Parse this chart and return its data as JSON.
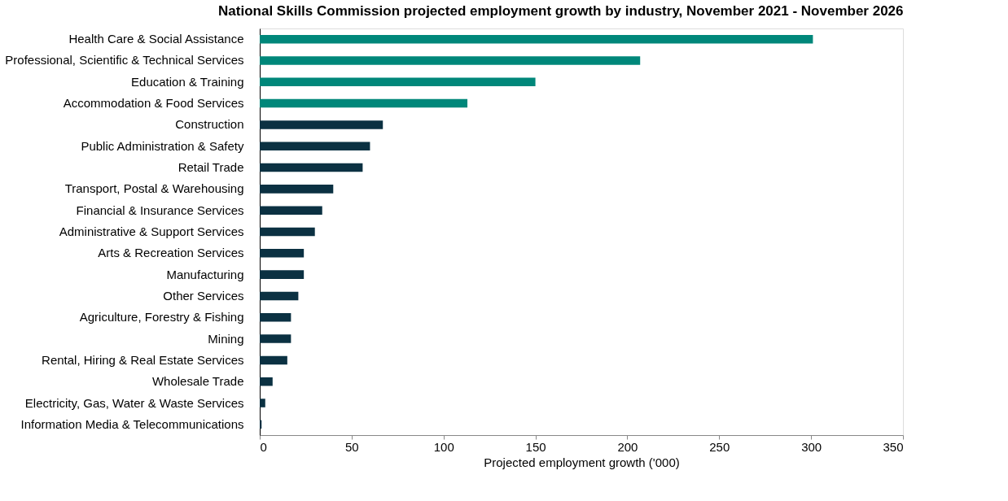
{
  "chart_data": {
    "type": "bar",
    "orientation": "horizontal",
    "title": "National Skills Commission projected employment growth by industry, November 2021 - November 2026",
    "xlabel": "Projected employment growth ('000)",
    "categories": [
      "Health Care & Social Assistance",
      "Professional, Scientific & Technical Services",
      "Education & Training",
      "Accommodation & Food Services",
      "Construction",
      "Public Administration & Safety",
      "Retail Trade",
      "Transport, Postal & Warehousing",
      "Financial & Insurance Services",
      "Administrative & Support Services",
      "Arts & Recreation Services",
      "Manufacturing",
      "Other Services",
      "Agriculture, Forestry & Fishing",
      "Mining",
      "Rental, Hiring & Real Estate Services",
      "Wholesale Trade",
      "Electricity, Gas, Water & Waste Services",
      "Information Media & Telecommunications"
    ],
    "values": [
      301,
      207,
      150,
      113,
      67,
      60,
      56,
      40,
      34,
      30,
      24,
      24,
      21,
      17,
      17,
      15,
      7,
      3,
      1
    ],
    "colors": [
      "#00877a",
      "#00877a",
      "#00877a",
      "#00877a",
      "#0b3142",
      "#0b3142",
      "#0b3142",
      "#0b3142",
      "#0b3142",
      "#0b3142",
      "#0b3142",
      "#0b3142",
      "#0b3142",
      "#0b3142",
      "#0b3142",
      "#0b3142",
      "#0b3142",
      "#0b3142",
      "#0b3142"
    ],
    "xlim": [
      0,
      350
    ],
    "xticks": [
      0,
      50,
      100,
      150,
      200,
      250,
      300,
      350
    ],
    "grid": false
  }
}
